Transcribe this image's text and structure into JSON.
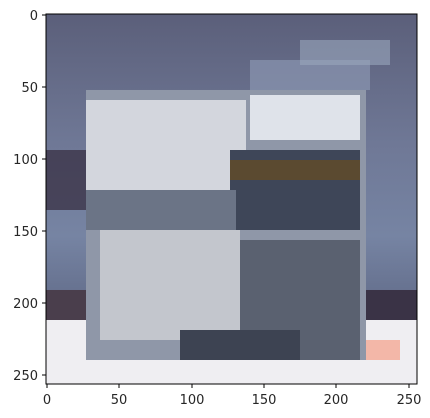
{
  "axes": {
    "x_ticks": [
      "0",
      "50",
      "100",
      "150",
      "200",
      "250"
    ],
    "y_ticks": [
      "0",
      "50",
      "100",
      "150",
      "200",
      "250"
    ],
    "x_range": [
      0,
      256
    ],
    "y_range": [
      256,
      0
    ],
    "grid": false
  },
  "image": {
    "description_icon": "pixelated-photo-icon",
    "resolution": [
      256,
      256
    ]
  },
  "colors": {
    "frame": "#000000",
    "tick": "#262626",
    "sky": "#6b7390",
    "foreground": "#c9ccd3"
  }
}
